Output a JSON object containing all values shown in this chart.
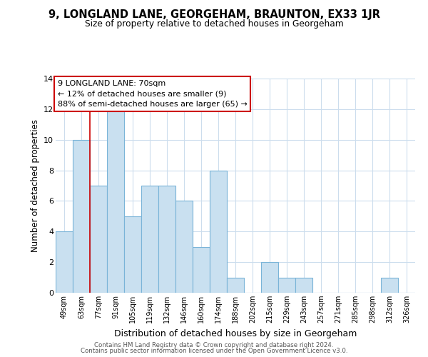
{
  "title": "9, LONGLAND LANE, GEORGEHAM, BRAUNTON, EX33 1JR",
  "subtitle": "Size of property relative to detached houses in Georgeham",
  "xlabel": "Distribution of detached houses by size in Georgeham",
  "ylabel": "Number of detached properties",
  "bar_labels": [
    "49sqm",
    "63sqm",
    "77sqm",
    "91sqm",
    "105sqm",
    "119sqm",
    "132sqm",
    "146sqm",
    "160sqm",
    "174sqm",
    "188sqm",
    "202sqm",
    "215sqm",
    "229sqm",
    "243sqm",
    "257sqm",
    "271sqm",
    "285sqm",
    "298sqm",
    "312sqm",
    "326sqm"
  ],
  "bar_values": [
    4,
    10,
    7,
    12,
    5,
    7,
    7,
    6,
    3,
    8,
    1,
    0,
    2,
    1,
    1,
    0,
    0,
    0,
    0,
    1,
    0
  ],
  "bar_color": "#c9e0f0",
  "bar_edge_color": "#7ab4d8",
  "red_line_after_bar": 1,
  "annotation_title": "9 LONGLAND LANE: 70sqm",
  "annotation_line1": "← 12% of detached houses are smaller (9)",
  "annotation_line2": "88% of semi-detached houses are larger (65) →",
  "annotation_box_edge": "#cc0000",
  "ylim": [
    0,
    14
  ],
  "yticks": [
    0,
    2,
    4,
    6,
    8,
    10,
    12,
    14
  ],
  "footer1": "Contains HM Land Registry data © Crown copyright and database right 2024.",
  "footer2": "Contains public sector information licensed under the Open Government Licence v3.0.",
  "background_color": "#ffffff",
  "grid_color": "#ccdded"
}
